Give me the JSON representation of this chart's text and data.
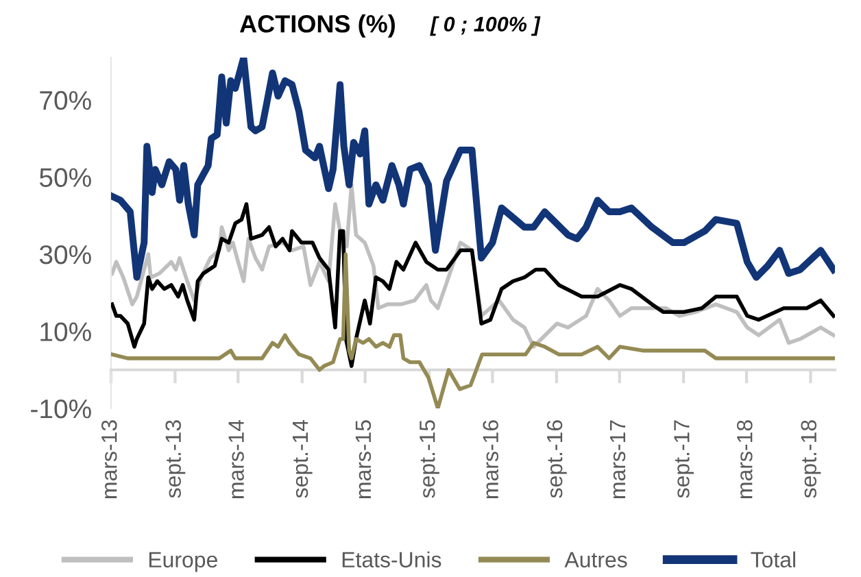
{
  "chart_data": {
    "type": "line",
    "title": "ACTIONS (%)",
    "subtitle": "[ 0 ; 100% ]",
    "xlim": [
      "2013-03-01",
      "2018-11-10"
    ],
    "xticks": [
      {
        "value": "2013-03-01",
        "label": "mars-13"
      },
      {
        "value": "2013-09-01",
        "label": "sept.-13"
      },
      {
        "value": "2014-03-01",
        "label": "mars-14"
      },
      {
        "value": "2014-09-01",
        "label": "sept.-14"
      },
      {
        "value": "2015-03-01",
        "label": "mars-15"
      },
      {
        "value": "2015-09-01",
        "label": "sept.-15"
      },
      {
        "value": "2016-03-01",
        "label": "mars-16"
      },
      {
        "value": "2016-09-01",
        "label": "sept.-16"
      },
      {
        "value": "2017-03-01",
        "label": "mars-17"
      },
      {
        "value": "2017-09-01",
        "label": "sept.-17"
      },
      {
        "value": "2018-03-01",
        "label": "mars-18"
      },
      {
        "value": "2018-09-01",
        "label": "sept.-18"
      }
    ],
    "ylim": [
      -10,
      81
    ],
    "yticks": [
      {
        "value": -10,
        "label": "-10%"
      },
      {
        "value": 10,
        "label": "10%"
      },
      {
        "value": 30,
        "label": "30%"
      },
      {
        "value": 50,
        "label": "50%"
      },
      {
        "value": 70,
        "label": "70%"
      }
    ],
    "grid": false,
    "legend": "bottom",
    "marker": "none",
    "line_style": "solid",
    "series": [
      {
        "name": "Europe",
        "color": "#bfbfbf",
        "x": [
          "2013-03-04",
          "2013-03-16",
          "2013-04-05",
          "2013-05-01",
          "2013-05-14",
          "2013-06-16",
          "2013-06-23",
          "2013-07-18",
          "2013-08-21",
          "2013-09-03",
          "2013-09-14",
          "2013-10-06",
          "2013-10-26",
          "2013-11-15",
          "2013-12-11",
          "2014-01-06",
          "2014-01-13",
          "2014-02-02",
          "2014-02-14",
          "2014-02-26",
          "2014-03-17",
          "2014-03-31",
          "2014-04-20",
          "2014-05-09",
          "2014-05-29",
          "2014-07-07",
          "2014-08-03",
          "2014-09-05",
          "2014-09-25",
          "2014-10-21",
          "2014-11-16",
          "2014-12-05",
          "2014-12-19",
          "2015-01-07",
          "2015-01-21",
          "2015-02-03",
          "2015-02-28",
          "2015-03-25",
          "2015-04-08",
          "2015-05-04",
          "2015-06-12",
          "2015-07-21",
          "2015-08-24",
          "2015-09-06",
          "2015-09-26",
          "2015-11-30",
          "2016-01-02",
          "2016-01-29",
          "2016-03-20",
          "2016-04-29",
          "2016-06-01",
          "2016-06-27",
          "2016-09-02",
          "2016-10-04",
          "2016-11-25",
          "2016-12-28",
          "2017-01-30",
          "2017-03-02",
          "2017-04-04",
          "2017-05-07",
          "2017-07-12",
          "2017-08-20",
          "2017-10-05",
          "2017-12-03",
          "2018-02-01",
          "2018-03-03",
          "2018-04-05",
          "2018-06-04",
          "2018-06-30",
          "2018-08-02",
          "2018-09-30",
          "2018-11-06"
        ],
        "values": [
          25,
          28,
          24,
          17,
          19,
          30,
          24,
          25,
          28,
          26,
          29,
          23,
          18,
          24,
          29,
          31,
          37,
          31,
          33,
          29,
          23,
          34,
          29,
          26,
          32,
          33,
          31,
          32,
          22,
          28,
          23,
          43,
          36,
          32,
          48,
          35,
          33,
          27,
          16,
          17,
          17,
          18,
          22,
          18,
          16,
          33,
          31,
          14,
          18,
          13,
          11,
          6,
          12,
          11,
          14,
          21,
          18,
          14,
          16,
          16,
          16,
          14,
          15,
          17,
          15,
          11,
          9,
          13,
          7,
          8,
          11,
          9
        ]
      },
      {
        "name": "Etats-Unis",
        "color": "#000000",
        "x": [
          "2013-03-04",
          "2013-03-16",
          "2013-03-28",
          "2013-04-18",
          "2013-05-07",
          "2013-05-14",
          "2013-06-04",
          "2013-06-16",
          "2013-06-27",
          "2013-07-12",
          "2013-08-01",
          "2013-08-21",
          "2013-09-10",
          "2013-09-23",
          "2013-10-06",
          "2013-10-26",
          "2013-11-05",
          "2013-11-21",
          "2013-12-24",
          "2014-01-13",
          "2014-02-02",
          "2014-02-21",
          "2014-03-11",
          "2014-03-25",
          "2014-04-07",
          "2014-05-09",
          "2014-05-29",
          "2014-06-17",
          "2014-07-07",
          "2014-07-27",
          "2014-08-03",
          "2014-08-30",
          "2014-10-01",
          "2014-10-21",
          "2014-11-16",
          "2014-12-05",
          "2014-12-19",
          "2014-12-28",
          "2015-01-05",
          "2015-01-21",
          "2015-02-03",
          "2015-02-28",
          "2015-03-15",
          "2015-04-01",
          "2015-04-21",
          "2015-05-10",
          "2015-05-30",
          "2015-06-19",
          "2015-07-24",
          "2015-08-24",
          "2015-09-26",
          "2015-10-21",
          "2015-11-30",
          "2016-01-02",
          "2016-01-29",
          "2016-02-24",
          "2016-03-27",
          "2016-04-29",
          "2016-06-01",
          "2016-07-03",
          "2016-07-29",
          "2016-09-08",
          "2016-11-12",
          "2016-12-28",
          "2017-03-02",
          "2017-04-04",
          "2017-06-02",
          "2017-07-05",
          "2017-09-02",
          "2017-10-24",
          "2017-12-03",
          "2018-02-01",
          "2018-03-03",
          "2018-04-05",
          "2018-06-16",
          "2018-08-21",
          "2018-09-30",
          "2018-11-06"
        ],
        "values": [
          17,
          14,
          14,
          12,
          6,
          8,
          12,
          24,
          21,
          23,
          21,
          22,
          19,
          22,
          18,
          13,
          23,
          25,
          27,
          34,
          33,
          38,
          39,
          43,
          34,
          35,
          37,
          32,
          34,
          31,
          36,
          33,
          33,
          29,
          26,
          11,
          36,
          36,
          8,
          1,
          8,
          18,
          12,
          24,
          23,
          21,
          28,
          26,
          33,
          28,
          26,
          26,
          31,
          31,
          12,
          13,
          21,
          23,
          24,
          26,
          26,
          22,
          19,
          19,
          22,
          21,
          17,
          15,
          15,
          16,
          19,
          19,
          14,
          13,
          16,
          16,
          18,
          14
        ]
      },
      {
        "name": "Autres",
        "color": "#948a54",
        "x": [
          "2013-03-04",
          "2013-04-18",
          "2013-05-14",
          "2013-06-16",
          "2013-09-10",
          "2014-01-06",
          "2014-02-08",
          "2014-02-21",
          "2014-05-09",
          "2014-06-08",
          "2014-06-24",
          "2014-07-14",
          "2014-07-27",
          "2014-08-23",
          "2014-09-25",
          "2014-10-21",
          "2014-11-03",
          "2014-11-29",
          "2014-12-19",
          "2014-12-28",
          "2015-01-04",
          "2015-01-14",
          "2015-01-21",
          "2015-02-03",
          "2015-02-23",
          "2015-03-12",
          "2015-04-01",
          "2015-04-21",
          "2015-05-10",
          "2015-05-23",
          "2015-06-10",
          "2015-06-19",
          "2015-07-08",
          "2015-08-04",
          "2015-08-30",
          "2015-09-26",
          "2015-10-27",
          "2015-11-28",
          "2015-12-29",
          "2016-01-31",
          "2016-06-04",
          "2016-06-27",
          "2016-07-29",
          "2016-09-08",
          "2016-10-23",
          "2016-11-12",
          "2016-12-28",
          "2017-01-30",
          "2017-03-02",
          "2017-05-07",
          "2017-07-12",
          "2017-09-02",
          "2017-11-01",
          "2017-12-03",
          "2018-11-06"
        ],
        "values": [
          4,
          3,
          3,
          3,
          3,
          3,
          5,
          3,
          3,
          7,
          6,
          9,
          7,
          4,
          3,
          0,
          1,
          2,
          8,
          8,
          30,
          5,
          3,
          8,
          7,
          8,
          6,
          7,
          6,
          9,
          9,
          3,
          2,
          2,
          -2,
          -10,
          0,
          -5,
          -4,
          4,
          4,
          7,
          6,
          4,
          4,
          4,
          6,
          3,
          6,
          5,
          5,
          5,
          5,
          3,
          3
        ]
      },
      {
        "name": "Total",
        "color": "#123577",
        "x": [
          "2013-03-04",
          "2013-03-28",
          "2013-04-25",
          "2013-05-14",
          "2013-06-04",
          "2013-06-12",
          "2013-06-27",
          "2013-07-06",
          "2013-07-25",
          "2013-08-15",
          "2013-09-03",
          "2013-09-14",
          "2013-09-26",
          "2013-10-09",
          "2013-10-26",
          "2013-11-05",
          "2013-12-05",
          "2013-12-14",
          "2013-12-31",
          "2014-01-13",
          "2014-01-26",
          "2014-02-08",
          "2014-02-21",
          "2014-03-17",
          "2014-04-07",
          "2014-04-20",
          "2014-05-09",
          "2014-05-22",
          "2014-06-08",
          "2014-06-24",
          "2014-07-14",
          "2014-08-03",
          "2014-08-23",
          "2014-09-11",
          "2014-10-08",
          "2014-10-21",
          "2014-11-16",
          "2014-11-29",
          "2014-12-19",
          "2014-12-30",
          "2015-01-14",
          "2015-01-27",
          "2015-02-15",
          "2015-02-28",
          "2015-03-12",
          "2015-04-01",
          "2015-04-21",
          "2015-05-17",
          "2015-06-06",
          "2015-06-19",
          "2015-07-08",
          "2015-08-04",
          "2015-08-30",
          "2015-09-19",
          "2015-10-21",
          "2015-11-30",
          "2016-01-02",
          "2016-01-29",
          "2016-03-01",
          "2016-03-27",
          "2016-06-01",
          "2016-06-27",
          "2016-07-29",
          "2016-10-04",
          "2016-10-30",
          "2016-11-25",
          "2016-12-28",
          "2017-01-30",
          "2017-03-02",
          "2017-04-04",
          "2017-06-02",
          "2017-08-01",
          "2017-09-02",
          "2017-11-01",
          "2017-12-03",
          "2018-02-01",
          "2018-03-03",
          "2018-03-29",
          "2018-05-01",
          "2018-06-04",
          "2018-06-30",
          "2018-08-02",
          "2018-09-30",
          "2018-11-06"
        ],
        "values": [
          45,
          44,
          41,
          24,
          33,
          58,
          46,
          52,
          48,
          54,
          52,
          44,
          53,
          43,
          35,
          48,
          53,
          60,
          61,
          76,
          64,
          75,
          73,
          81,
          63,
          62,
          63,
          69,
          77,
          71,
          75,
          74,
          67,
          57,
          55,
          58,
          47,
          52,
          74,
          58,
          48,
          59,
          56,
          62,
          43,
          48,
          44,
          53,
          48,
          43,
          52,
          53,
          48,
          31,
          49,
          57,
          57,
          29,
          33,
          42,
          37,
          37,
          41,
          35,
          34,
          37,
          44,
          41,
          41,
          42,
          37,
          33,
          33,
          36,
          39,
          38,
          28,
          24,
          27,
          31,
          25,
          26,
          31,
          26
        ]
      }
    ]
  }
}
